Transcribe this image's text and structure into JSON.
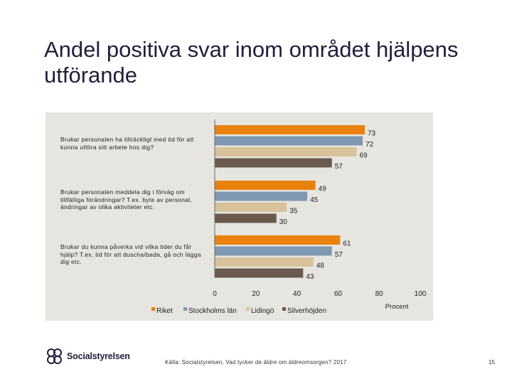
{
  "title": "Andel positiva svar inom området hjälpens utförande",
  "chart_data": {
    "type": "bar",
    "orientation": "horizontal",
    "categories": [
      "Brukar personalen ha tillräckligt med tid för att kunna utföra sitt arbete hos dig?",
      "Brukar personalen meddela dig i förväg om tillfälliga förändringar? T.ex. byte av personal, ändringar av olika aktiviteter etc.",
      "Brukar du kunna påverka vid vilka tider du får hjälp? T.ex. tid för att duscha/bada, gå och lägga dig etc."
    ],
    "series": [
      {
        "name": "Riket",
        "color": "#e8820c",
        "values": [
          73,
          49,
          61
        ]
      },
      {
        "name": "Stockholms län",
        "color": "#7f97b1",
        "values": [
          72,
          45,
          57
        ]
      },
      {
        "name": "Lidingö",
        "color": "#d8c29b",
        "values": [
          69,
          35,
          48
        ]
      },
      {
        "name": "Silverhöjden",
        "color": "#6a5a4e",
        "values": [
          57,
          30,
          43
        ]
      }
    ],
    "xlim": [
      0,
      100
    ],
    "xticks": [
      "0",
      "20",
      "40",
      "60",
      "80",
      "100"
    ],
    "xlabel": "Procent",
    "ylabel": "",
    "legend_position": "bottom-left"
  },
  "footer": {
    "logo_text": "Socialstyrelsen",
    "source": "Källa: Socialstyrelsen, Vad tycker de äldre om äldreomsorgen? 2017",
    "page_number": "15"
  }
}
